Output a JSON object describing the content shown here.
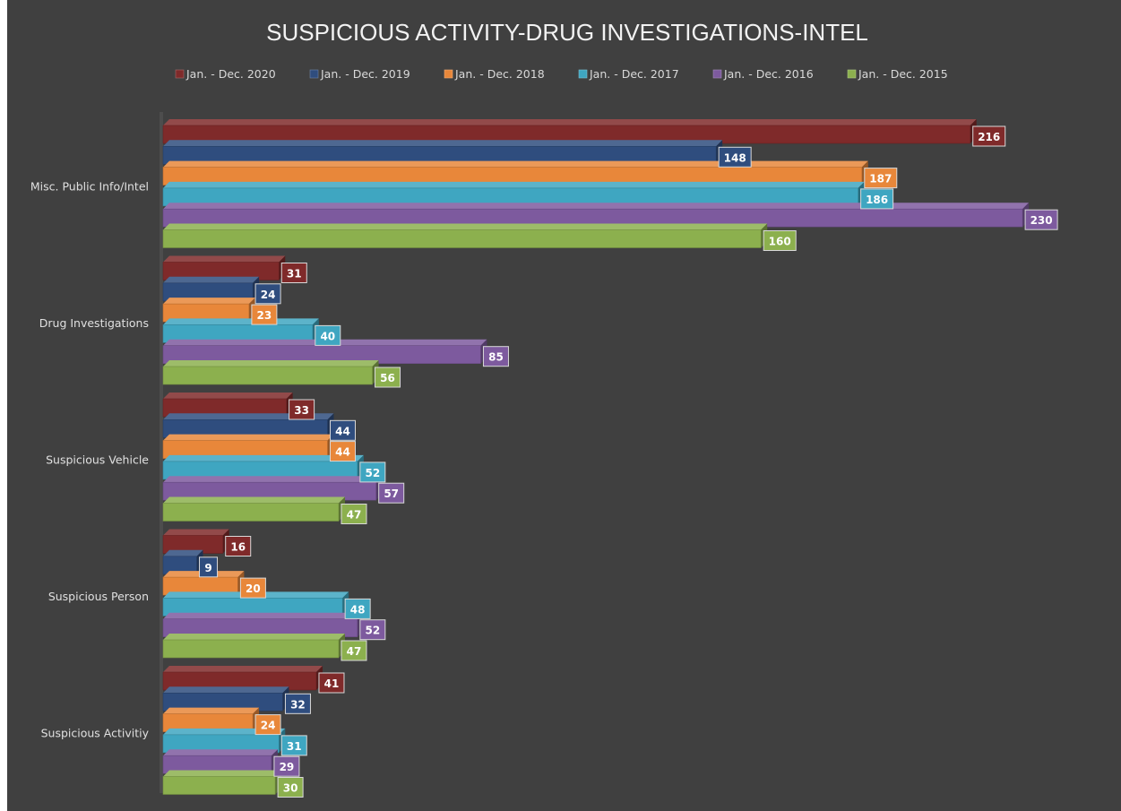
{
  "chart_data": {
    "type": "bar",
    "orientation": "horizontal",
    "title": "SUSPICIOUS ACTIVITY-DRUG INVESTIGATIONS-INTEL",
    "xlabel": "",
    "ylabel": "",
    "categories": [
      "Misc. Public Info/Intel",
      "Drug Investigations",
      "Suspicious Vehicle",
      "Suspicious Person",
      "Suspicious Activitiy"
    ],
    "series": [
      {
        "name": "Jan. - Dec. 2020",
        "color": "#7f2a2a",
        "values": [
          216,
          31,
          33,
          16,
          41
        ]
      },
      {
        "name": "Jan. - Dec. 2019",
        "color": "#2f4d7e",
        "values": [
          148,
          24,
          44,
          9,
          32
        ]
      },
      {
        "name": "Jan. - Dec. 2018",
        "color": "#e8873a",
        "values": [
          187,
          23,
          44,
          20,
          24
        ]
      },
      {
        "name": "Jan. - Dec. 2017",
        "color": "#3fa6c1",
        "values": [
          186,
          40,
          52,
          48,
          31
        ]
      },
      {
        "name": "Jan. - Dec. 2016",
        "color": "#7d5a9e",
        "values": [
          230,
          85,
          57,
          52,
          29
        ]
      },
      {
        "name": "Jan. - Dec. 2015",
        "color": "#8cb04e",
        "values": [
          160,
          56,
          47,
          47,
          30
        ]
      }
    ],
    "xlim": [
      0,
      240
    ],
    "grid": false,
    "legend_position": "top",
    "data_labels": true
  },
  "colors": {
    "background": "#404040",
    "title": "#f2f2f2",
    "text": "#d9d9d9",
    "label_box_border": "#d9d9d9"
  }
}
